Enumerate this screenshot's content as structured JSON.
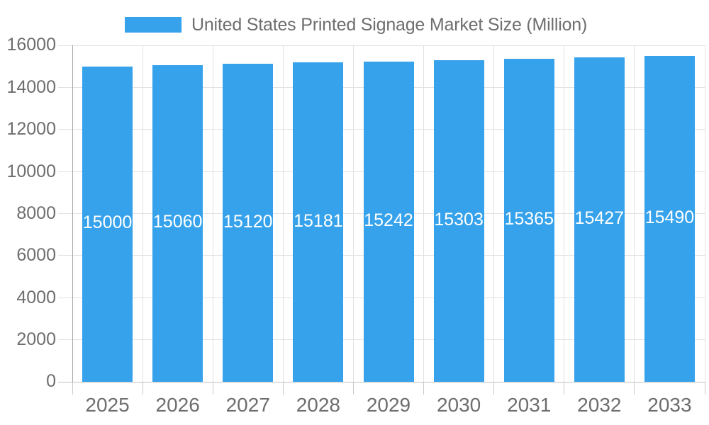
{
  "legend": {
    "label": "United States Printed Signage Market Size (Million)"
  },
  "chart_data": {
    "type": "bar",
    "title": "United States Printed Signage Market Size (Million)",
    "categories": [
      "2025",
      "2026",
      "2027",
      "2028",
      "2029",
      "2030",
      "2031",
      "2032",
      "2033"
    ],
    "series": [
      {
        "name": "United States Printed Signage Market Size (Million)",
        "values": [
          15000,
          15060,
          15120,
          15181,
          15242,
          15303,
          15365,
          15427,
          15490
        ]
      }
    ],
    "xlabel": "",
    "ylabel": "",
    "ylim": [
      0,
      16000
    ],
    "yticks": [
      0,
      2000,
      4000,
      6000,
      8000,
      10000,
      12000,
      14000,
      16000
    ],
    "grid": true,
    "legend_position": "top",
    "bar_value_labels": "inside-middle"
  },
  "colors": {
    "bar": "#36A2EB",
    "bar_value_label": "#FFFFFF",
    "axis_text": "#6E6E6E",
    "legend_text": "#6E6E6E",
    "gridline": "#E2E2E2",
    "y_axis_line": "#A6A6A6",
    "x_axis_line": "#C0C0C0",
    "x_tick": "#C9C9C9",
    "background": "#FFFFFF"
  }
}
